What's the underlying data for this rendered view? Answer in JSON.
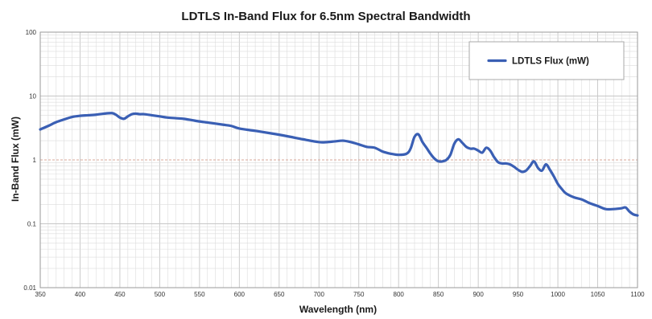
{
  "chart_data": {
    "type": "line",
    "title": "LDTLS In-Band Flux for 6.5nm Spectral Bandwidth",
    "xlabel": "Wavelength (nm)",
    "ylabel": "In-Band Flux (mW)",
    "xlim": [
      350,
      1100
    ],
    "ylim": [
      0.01,
      100
    ],
    "y_scale": "log",
    "x_ticks": [
      "350",
      "400",
      "450",
      "500",
      "550",
      "600",
      "650",
      "700",
      "750",
      "800",
      "850",
      "900",
      "950",
      "1000",
      "1050",
      "1100"
    ],
    "y_ticks": [
      "0.01",
      "0.1",
      "1",
      "10",
      "100"
    ],
    "grid": true,
    "legend_position": "top-right",
    "colors": {
      "series": "#3a5fb4",
      "grid_minor": "#dcdcdc",
      "grid_major": "#c6c6c6",
      "grid_one": "#d9a79a"
    },
    "series": [
      {
        "name": "LDTLS Flux (mW)",
        "x": [
          350,
          360,
          370,
          380,
          390,
          400,
          410,
          420,
          430,
          440,
          445,
          450,
          455,
          460,
          465,
          470,
          475,
          480,
          490,
          500,
          510,
          520,
          530,
          540,
          550,
          560,
          570,
          580,
          590,
          600,
          620,
          640,
          660,
          680,
          700,
          710,
          720,
          730,
          740,
          750,
          760,
          770,
          780,
          790,
          800,
          810,
          815,
          820,
          825,
          830,
          835,
          840,
          845,
          850,
          855,
          860,
          865,
          870,
          875,
          880,
          885,
          890,
          895,
          900,
          905,
          910,
          915,
          920,
          925,
          930,
          935,
          940,
          945,
          950,
          955,
          960,
          965,
          970,
          975,
          980,
          985,
          990,
          995,
          1000,
          1005,
          1010,
          1020,
          1030,
          1040,
          1050,
          1060,
          1070,
          1080,
          1085,
          1090,
          1095,
          1100
        ],
        "y": [
          3.0,
          3.4,
          3.9,
          4.3,
          4.7,
          4.9,
          5.0,
          5.1,
          5.3,
          5.4,
          5.1,
          4.6,
          4.4,
          4.8,
          5.2,
          5.3,
          5.2,
          5.2,
          5.0,
          4.8,
          4.6,
          4.5,
          4.4,
          4.2,
          4.0,
          3.85,
          3.7,
          3.55,
          3.4,
          3.1,
          2.85,
          2.6,
          2.35,
          2.1,
          1.9,
          1.9,
          1.95,
          2.0,
          1.9,
          1.75,
          1.6,
          1.55,
          1.35,
          1.25,
          1.2,
          1.25,
          1.5,
          2.3,
          2.5,
          1.9,
          1.55,
          1.25,
          1.05,
          0.95,
          0.95,
          1.0,
          1.2,
          1.8,
          2.1,
          1.85,
          1.6,
          1.5,
          1.5,
          1.4,
          1.3,
          1.55,
          1.4,
          1.1,
          0.92,
          0.88,
          0.88,
          0.85,
          0.78,
          0.7,
          0.65,
          0.68,
          0.8,
          0.95,
          0.75,
          0.68,
          0.85,
          0.7,
          0.55,
          0.42,
          0.35,
          0.3,
          0.26,
          0.24,
          0.21,
          0.19,
          0.17,
          0.17,
          0.175,
          0.18,
          0.155,
          0.14,
          0.135
        ]
      }
    ]
  }
}
